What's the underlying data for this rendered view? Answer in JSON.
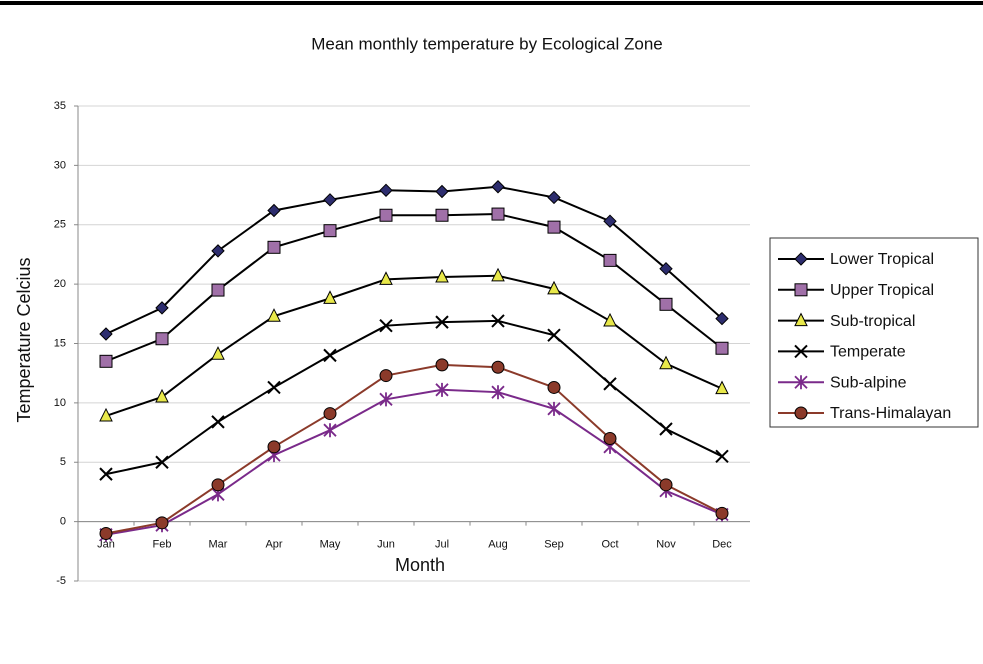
{
  "chart_data": {
    "type": "line",
    "title": "Mean monthly temperature by Ecological Zone",
    "x_label": "Month",
    "y_label": "Temperature Celcius",
    "categories": [
      "Jan",
      "Feb",
      "Mar",
      "Apr",
      "May",
      "Jun",
      "Jul",
      "Aug",
      "Sep",
      "Oct",
      "Nov",
      "Dec"
    ],
    "ylim": [
      -5,
      35
    ],
    "yticks": [
      -5,
      0,
      5,
      10,
      15,
      20,
      25,
      30,
      35
    ],
    "grid": true,
    "legend": "right",
    "series": [
      {
        "name": "Lower Tropical",
        "color": "#000000",
        "marker": "diamond",
        "marker_color": "#2d2d6e",
        "values": [
          15.8,
          18,
          22.8,
          26.2,
          27.1,
          27.9,
          27.8,
          28.2,
          27.3,
          25.3,
          21.3,
          17.1
        ]
      },
      {
        "name": "Upper Tropical",
        "color": "#000000",
        "marker": "square",
        "marker_color": "#a070a8",
        "values": [
          13.5,
          15.4,
          19.5,
          23.1,
          24.5,
          25.8,
          25.8,
          25.9,
          24.8,
          22,
          18.3,
          14.6
        ]
      },
      {
        "name": "Sub-tropical",
        "color": "#000000",
        "marker": "triangle",
        "marker_color": "#e8e84a",
        "values": [
          8.9,
          10.5,
          14.1,
          17.3,
          18.8,
          20.4,
          20.6,
          20.7,
          19.6,
          16.9,
          13.3,
          11.2
        ]
      },
      {
        "name": "Temperate",
        "color": "#000000",
        "marker": "x",
        "marker_color": "#000000",
        "values": [
          4,
          5,
          8.4,
          11.3,
          14,
          16.5,
          16.8,
          16.9,
          15.7,
          11.6,
          7.8,
          5.5
        ]
      },
      {
        "name": "Sub-alpine",
        "color": "#7a2a8a",
        "marker": "asterisk",
        "marker_color": "#7a2a8a",
        "values": [
          -1.1,
          -0.3,
          2.3,
          5.6,
          7.7,
          10.3,
          11.1,
          10.9,
          9.5,
          6.3,
          2.6,
          0.6
        ]
      },
      {
        "name": "Trans-Himalayan",
        "color": "#8b3a2a",
        "marker": "circle",
        "marker_color": "#8b3a2a",
        "values": [
          -1,
          -0.1,
          3.1,
          6.3,
          9.1,
          12.3,
          13.2,
          13,
          11.3,
          7,
          3.1,
          0.7
        ]
      }
    ]
  }
}
